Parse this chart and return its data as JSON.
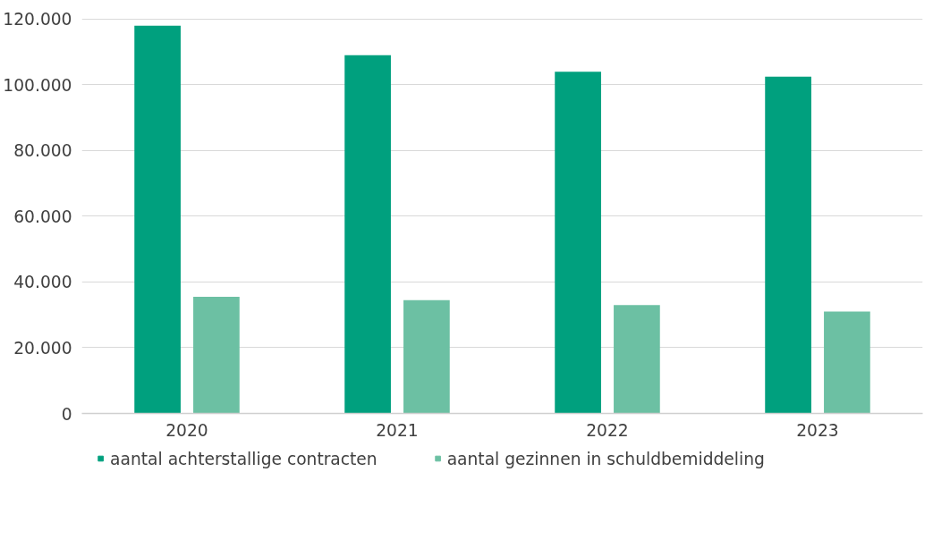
{
  "chart_data": {
    "type": "bar",
    "categories": [
      "2020",
      "2021",
      "2022",
      "2023"
    ],
    "series": [
      {
        "name": "aantal achterstallige contracten",
        "color": "#00a07e",
        "values": [
          118000,
          109000,
          104000,
          102500
        ]
      },
      {
        "name": "aantal gezinnen in schuldbemiddeling",
        "color": "#6cc0a3",
        "values": [
          35500,
          34500,
          33000,
          31000
        ]
      }
    ],
    "ylim": [
      0,
      120000
    ],
    "yticks": [
      {
        "value": 0,
        "label": "0"
      },
      {
        "value": 20000,
        "label": "20.000"
      },
      {
        "value": 40000,
        "label": "40.000"
      },
      {
        "value": 60000,
        "label": "60.000"
      },
      {
        "value": 80000,
        "label": "80.000"
      },
      {
        "value": 100000,
        "label": "100.000"
      },
      {
        "value": 120000,
        "label": "120.000"
      }
    ],
    "grid": "y",
    "legend": "bottom"
  }
}
